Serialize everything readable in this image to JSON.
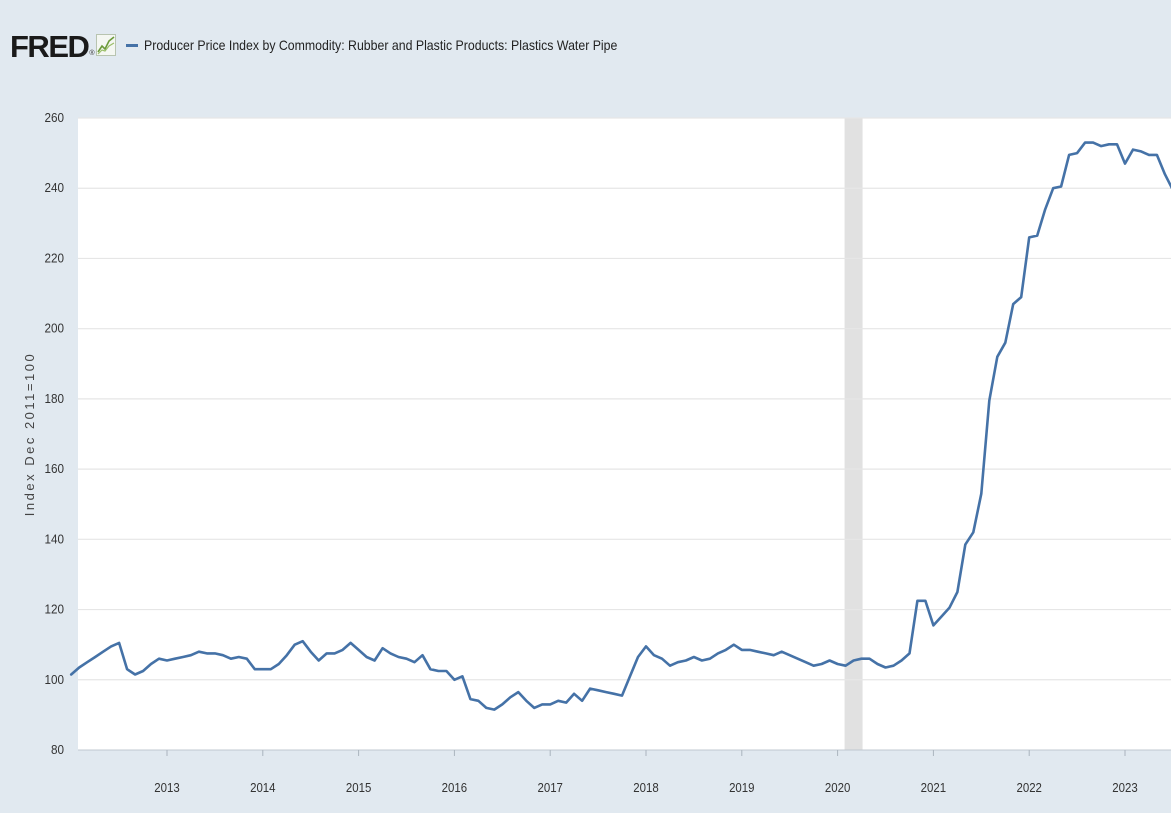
{
  "brand": {
    "name": "FRED",
    "registered_mark": "®"
  },
  "colors": {
    "series": "#4572a7",
    "background": "#e1e9f0",
    "plot": "#ffffff",
    "recession": "#e1e1e1",
    "grid": "#e6e6e6"
  },
  "chart_data": {
    "type": "line",
    "title": "",
    "ylabel": "Index Dec 2011=100",
    "xlabel": "",
    "ylim": [
      80,
      260
    ],
    "yticks": [
      80,
      100,
      120,
      140,
      160,
      180,
      200,
      220,
      240,
      260
    ],
    "xlim": [
      "2012-01",
      "2023-07"
    ],
    "xticks": [
      "2013",
      "2014",
      "2015",
      "2016",
      "2017",
      "2018",
      "2019",
      "2020",
      "2021",
      "2022",
      "2023"
    ],
    "grid": true,
    "legend_position": "top-left",
    "recession_shading": [
      {
        "start": "2020-02",
        "end": "2020-04"
      }
    ],
    "series": [
      {
        "name": "Producer Price Index by Commodity: Rubber and Plastic Products: Plastics Water Pipe",
        "color": "#4572a7",
        "x": [
          "2012-01",
          "2012-02",
          "2012-03",
          "2012-04",
          "2012-05",
          "2012-06",
          "2012-07",
          "2012-08",
          "2012-09",
          "2012-10",
          "2012-11",
          "2012-12",
          "2013-01",
          "2013-02",
          "2013-03",
          "2013-04",
          "2013-05",
          "2013-06",
          "2013-07",
          "2013-08",
          "2013-09",
          "2013-10",
          "2013-11",
          "2013-12",
          "2014-01",
          "2014-02",
          "2014-03",
          "2014-04",
          "2014-05",
          "2014-06",
          "2014-07",
          "2014-08",
          "2014-09",
          "2014-10",
          "2014-11",
          "2014-12",
          "2015-01",
          "2015-02",
          "2015-03",
          "2015-04",
          "2015-05",
          "2015-06",
          "2015-07",
          "2015-08",
          "2015-09",
          "2015-10",
          "2015-11",
          "2015-12",
          "2016-01",
          "2016-02",
          "2016-03",
          "2016-04",
          "2016-05",
          "2016-06",
          "2016-07",
          "2016-08",
          "2016-09",
          "2016-10",
          "2016-11",
          "2016-12",
          "2017-01",
          "2017-02",
          "2017-03",
          "2017-04",
          "2017-05",
          "2017-06",
          "2017-07",
          "2017-08",
          "2017-09",
          "2017-10",
          "2017-11",
          "2017-12",
          "2018-01",
          "2018-02",
          "2018-03",
          "2018-04",
          "2018-05",
          "2018-06",
          "2018-07",
          "2018-08",
          "2018-09",
          "2018-10",
          "2018-11",
          "2018-12",
          "2019-01",
          "2019-02",
          "2019-03",
          "2019-04",
          "2019-05",
          "2019-06",
          "2019-07",
          "2019-08",
          "2019-09",
          "2019-10",
          "2019-11",
          "2019-12",
          "2020-01",
          "2020-02",
          "2020-03",
          "2020-04",
          "2020-05",
          "2020-06",
          "2020-07",
          "2020-08",
          "2020-09",
          "2020-10",
          "2020-11",
          "2020-12",
          "2021-01",
          "2021-02",
          "2021-03",
          "2021-04",
          "2021-05",
          "2021-06",
          "2021-07",
          "2021-08",
          "2021-09",
          "2021-10",
          "2021-11",
          "2021-12",
          "2022-01",
          "2022-02",
          "2022-03",
          "2022-04",
          "2022-05",
          "2022-06",
          "2022-07",
          "2022-08",
          "2022-09",
          "2022-10",
          "2022-11",
          "2022-12",
          "2023-01",
          "2023-02",
          "2023-03",
          "2023-04",
          "2023-05",
          "2023-06",
          "2023-07"
        ],
        "values": [
          101.5,
          103.5,
          105,
          106.5,
          108,
          109.5,
          110.5,
          103,
          101.5,
          102.5,
          104.5,
          106,
          105.5,
          106,
          106.5,
          107,
          108,
          107.5,
          107.5,
          107,
          106,
          106.5,
          106,
          103,
          103,
          103,
          104.5,
          107,
          110,
          111,
          108,
          105.5,
          107.5,
          107.5,
          108.5,
          110.5,
          108.5,
          106.5,
          105.5,
          109,
          107.5,
          106.5,
          106,
          105,
          107,
          103,
          102.5,
          102.5,
          100,
          101,
          94.5,
          94,
          92,
          91.5,
          93,
          95,
          96.5,
          94,
          92,
          93,
          93,
          94,
          93.5,
          96,
          94,
          97.5,
          97,
          96.5,
          96,
          95.5,
          101,
          106.5,
          109.5,
          107,
          106,
          104,
          105,
          105.5,
          106.5,
          105.5,
          106,
          107.5,
          108.5,
          110,
          108.5,
          108.5,
          108,
          107.5,
          107,
          108,
          107,
          106,
          105,
          104,
          104.5,
          105.5,
          104.5,
          104,
          105.5,
          106,
          106,
          104.5,
          103.5,
          104,
          105.5,
          107.5,
          122.5,
          122.5,
          115.5,
          118,
          120.5,
          125,
          138.5,
          142,
          153,
          179.5,
          192,
          196,
          207,
          209,
          226,
          226.5,
          234,
          240,
          240.5,
          249.5,
          250,
          253,
          253,
          252,
          252.5,
          252.5,
          247,
          251,
          250.5,
          249.5,
          249.5,
          244,
          239.5
        ]
      }
    ]
  }
}
